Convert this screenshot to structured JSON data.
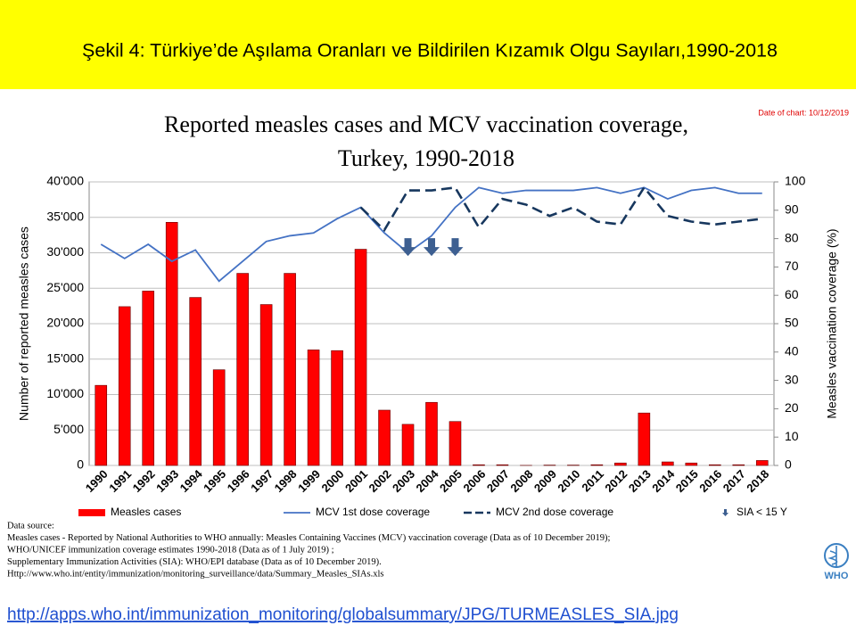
{
  "header": {
    "title": "Şekil 4: Türkiye’de Aşılama Oranları ve Bildirilen Kızamık Olgu Sayıları,1990-2018"
  },
  "chart_data": {
    "type": "bar-line",
    "title": [
      "Reported measles cases and MCV vaccination coverage,",
      "Turkey, 1990-2018"
    ],
    "note": "Date of chart: 10/12/2019",
    "y_label": "Number of reported measles cases",
    "y2_label": "Measles vaccination coverage (%)",
    "categories": [
      "1990",
      "1991",
      "1992",
      "1993",
      "1994",
      "1995",
      "1996",
      "1997",
      "1998",
      "1999",
      "2000",
      "2001",
      "2002",
      "2003",
      "2004",
      "2005",
      "2006",
      "2007",
      "2008",
      "2009",
      "2010",
      "2011",
      "2012",
      "2013",
      "2014",
      "2015",
      "2016",
      "2017",
      "2018"
    ],
    "ylim": [
      0,
      40000
    ],
    "yticks": [
      {
        "value": 0,
        "label": "0"
      },
      {
        "value": 5000,
        "label": "5'000"
      },
      {
        "value": 10000,
        "label": "10'000"
      },
      {
        "value": 15000,
        "label": "15'000"
      },
      {
        "value": 20000,
        "label": "20'000"
      },
      {
        "value": 25000,
        "label": "25'000"
      },
      {
        "value": 30000,
        "label": "30'000"
      },
      {
        "value": 35000,
        "label": "35'000"
      },
      {
        "value": 40000,
        "label": "40'000"
      }
    ],
    "y2lim": [
      0,
      100
    ],
    "y2ticks": [
      0,
      10,
      20,
      30,
      40,
      50,
      60,
      70,
      80,
      90,
      100
    ],
    "grid": true,
    "series": [
      {
        "name": "Measles cases",
        "type": "bar",
        "color": "#ff0000",
        "values": [
          11300,
          22400,
          24600,
          34300,
          23700,
          13500,
          27100,
          22700,
          27100,
          16300,
          16200,
          30500,
          7800,
          5800,
          8900,
          6200,
          100,
          100,
          10,
          50,
          50,
          100,
          350,
          7400,
          500,
          350,
          100,
          100,
          700
        ]
      },
      {
        "name": "MCV 1st dose coverage",
        "type": "line",
        "axis": "y2",
        "color": "#4472c4",
        "values": [
          78,
          73,
          78,
          72,
          76,
          65,
          72,
          79,
          81,
          82,
          87,
          91,
          82,
          75,
          81,
          91,
          98,
          96,
          97,
          97,
          97,
          98,
          96,
          98,
          94,
          97,
          98,
          96,
          96
        ]
      },
      {
        "name": "MCV 2nd dose coverage",
        "type": "dashed-line",
        "axis": "y2",
        "color": "#17375e",
        "values": [
          null,
          null,
          null,
          null,
          null,
          null,
          null,
          null,
          null,
          null,
          null,
          91,
          83,
          97,
          97,
          98,
          84,
          94,
          92,
          88,
          91,
          86,
          85,
          98,
          88,
          86,
          85,
          86,
          87
        ]
      },
      {
        "name": "SIA < 15 Y",
        "type": "arrow",
        "axis": "y2",
        "color": "#3d5f91",
        "values": [
          null,
          null,
          null,
          null,
          null,
          null,
          null,
          null,
          null,
          null,
          null,
          null,
          null,
          77,
          77,
          77,
          null,
          null,
          null,
          null,
          null,
          null,
          null,
          null,
          null,
          null,
          null,
          null,
          null
        ]
      }
    ]
  },
  "source": {
    "lines": [
      "Data source:",
      "Measles cases - Reported by National Authorities to WHO annually: Measles Containing Vaccines (MCV) vaccination coverage (Data as of 10 December 2019);",
      "WHO/UNICEF immunization coverage estimates 1990-2018 (Data as of 1 July 2019) ;",
      "Supplementary Immunization Activities (SIA): WHO/EPI database (Data as of 10 December 2019).",
      "Http://www.who.int/entity/immunization/monitoring_surveillance/data/Summary_Measles_SIAs.xls"
    ]
  },
  "logo": {
    "text": "WHO"
  },
  "link": {
    "text": "http://apps.who.int/immunization_monitoring/globalsummary/JPG/TURMEASLES_SIA.jpg"
  }
}
